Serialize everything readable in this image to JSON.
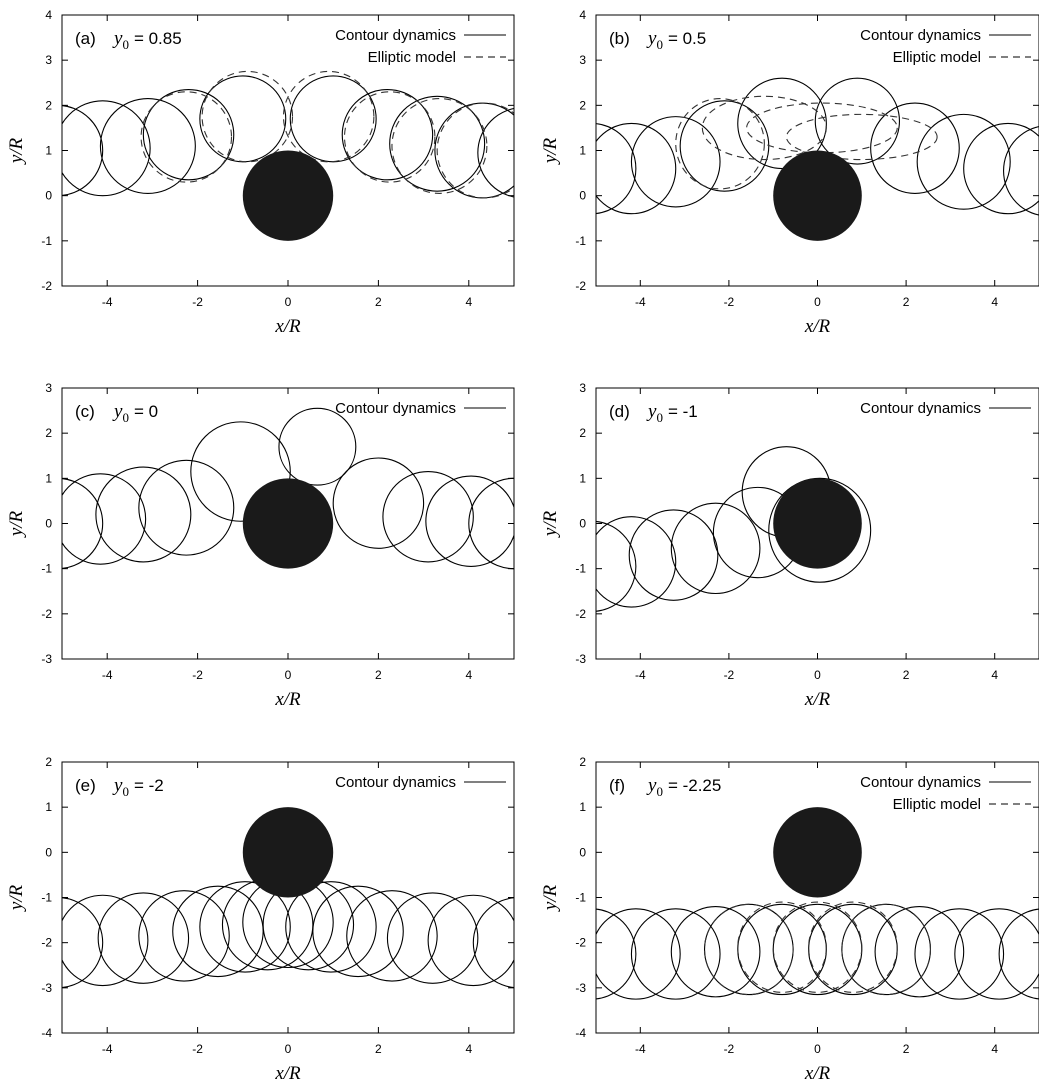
{
  "chart_data": [
    {
      "type": "line",
      "panel_label": "(a)",
      "param": {
        "symbol": "y",
        "subscript": "0",
        "value": "= 0.85"
      },
      "xlabel": "x/R",
      "ylabel": "y/R",
      "xlim": [
        -5,
        5
      ],
      "ylim": [
        -2,
        4
      ],
      "xticks": [
        "-4",
        "-2",
        "0",
        "2",
        "4"
      ],
      "yticks": [
        "-2",
        "-1",
        "0",
        "1",
        "2",
        "3",
        "4"
      ],
      "grid": false,
      "legend_position": "top-right",
      "legend": [
        {
          "label": "Contour dynamics",
          "style": "solid"
        },
        {
          "label": "Elliptic model",
          "style": "dashed"
        }
      ],
      "obstacle": {
        "cx": 0,
        "cy": 0,
        "r": 1
      },
      "series": [
        {
          "name": "Contour dynamics",
          "style": "solid",
          "circles": [
            {
              "cx": -5.1,
              "cy": 1.0,
              "r": 1.0
            },
            {
              "cx": -4.1,
              "cy": 1.05,
              "r": 1.05
            },
            {
              "cx": -3.1,
              "cy": 1.1,
              "r": 1.05
            },
            {
              "cx": -2.2,
              "cy": 1.35,
              "r": 1.0
            },
            {
              "cx": -1.0,
              "cy": 1.7,
              "r": 0.95
            },
            {
              "cx": 1.0,
              "cy": 1.7,
              "r": 0.95
            },
            {
              "cx": 2.2,
              "cy": 1.35,
              "r": 1.0
            },
            {
              "cx": 3.3,
              "cy": 1.15,
              "r": 1.05
            },
            {
              "cx": 4.3,
              "cy": 1.0,
              "r": 1.05
            },
            {
              "cx": 5.2,
              "cy": 0.95,
              "r": 1.0
            }
          ]
        },
        {
          "name": "Elliptic model",
          "style": "dashed",
          "circles": [
            {
              "cx": -2.25,
              "cy": 1.3,
              "r": 1.0
            },
            {
              "cx": -0.9,
              "cy": 1.75,
              "r": 1.0
            },
            {
              "cx": 0.9,
              "cy": 1.75,
              "r": 1.0
            },
            {
              "cx": 2.25,
              "cy": 1.3,
              "r": 1.0
            },
            {
              "cx": 3.35,
              "cy": 1.1,
              "r": 1.05
            },
            {
              "cx": 4.35,
              "cy": 1.0,
              "r": 1.05
            }
          ]
        }
      ]
    },
    {
      "type": "line",
      "panel_label": "(b)",
      "param": {
        "symbol": "y",
        "subscript": "0",
        "value": "= 0.5"
      },
      "xlabel": "x/R",
      "ylabel": "y/R",
      "xlim": [
        -5,
        5
      ],
      "ylim": [
        -2,
        4
      ],
      "xticks": [
        "-4",
        "-2",
        "0",
        "2",
        "4"
      ],
      "yticks": [
        "-2",
        "-1",
        "0",
        "1",
        "2",
        "3",
        "4"
      ],
      "grid": false,
      "legend_position": "top-right",
      "legend": [
        {
          "label": "Contour dynamics",
          "style": "solid"
        },
        {
          "label": "Elliptic model",
          "style": "dashed"
        }
      ],
      "obstacle": {
        "cx": 0,
        "cy": 0,
        "r": 1
      },
      "series": [
        {
          "name": "Contour dynamics",
          "style": "solid",
          "circles": [
            {
              "cx": -5.1,
              "cy": 0.6,
              "r": 1.0
            },
            {
              "cx": -4.2,
              "cy": 0.6,
              "r": 1.0
            },
            {
              "cx": -3.2,
              "cy": 0.75,
              "r": 1.0
            },
            {
              "cx": -2.1,
              "cy": 1.1,
              "r": 1.0
            },
            {
              "cx": -0.8,
              "cy": 1.6,
              "r": 1.0
            },
            {
              "cx": 0.9,
              "cy": 1.65,
              "r": 0.95
            },
            {
              "cx": 2.2,
              "cy": 1.05,
              "r": 1.0
            },
            {
              "cx": 3.3,
              "cy": 0.75,
              "r": 1.05
            },
            {
              "cx": 4.3,
              "cy": 0.6,
              "r": 1.0
            },
            {
              "cx": 5.2,
              "cy": 0.55,
              "r": 1.0
            }
          ]
        },
        {
          "name": "Elliptic model",
          "style": "dashed",
          "ellipses": [
            {
              "cx": -2.2,
              "cy": 1.15,
              "rx": 1.0,
              "ry": 1.0
            },
            {
              "cx": -1.2,
              "cy": 1.5,
              "rx": 1.4,
              "ry": 0.7
            },
            {
              "cx": 0.1,
              "cy": 1.5,
              "rx": 1.7,
              "ry": 0.55
            },
            {
              "cx": 1.0,
              "cy": 1.3,
              "rx": 1.7,
              "ry": 0.5
            }
          ]
        }
      ]
    },
    {
      "type": "line",
      "panel_label": "(c)",
      "param": {
        "symbol": "y",
        "subscript": "0",
        "value": "= 0"
      },
      "xlabel": "x/R",
      "ylabel": "y/R",
      "xlim": [
        -5,
        5
      ],
      "ylim": [
        -3,
        3
      ],
      "xticks": [
        "-4",
        "-2",
        "0",
        "2",
        "4"
      ],
      "yticks": [
        "-3",
        "-2",
        "-1",
        "0",
        "1",
        "2",
        "3"
      ],
      "grid": false,
      "legend_position": "top-right",
      "legend": [
        {
          "label": "Contour dynamics",
          "style": "solid"
        }
      ],
      "obstacle": {
        "cx": 0,
        "cy": 0,
        "r": 1
      },
      "series": [
        {
          "name": "Contour dynamics",
          "style": "solid",
          "circles": [
            {
              "cx": -5.1,
              "cy": 0.0,
              "r": 1.0
            },
            {
              "cx": -4.15,
              "cy": 0.1,
              "r": 1.0
            },
            {
              "cx": -3.2,
              "cy": 0.2,
              "r": 1.05
            },
            {
              "cx": -2.25,
              "cy": 0.35,
              "r": 1.05
            },
            {
              "cx": -1.05,
              "cy": 1.15,
              "r": 1.1
            },
            {
              "cx": 0.65,
              "cy": 1.7,
              "r": 0.85
            },
            {
              "cx": 2.0,
              "cy": 0.45,
              "r": 1.0
            },
            {
              "cx": 3.1,
              "cy": 0.15,
              "r": 1.0
            },
            {
              "cx": 4.05,
              "cy": 0.05,
              "r": 1.0
            },
            {
              "cx": 5.0,
              "cy": 0.0,
              "r": 1.0
            }
          ]
        }
      ]
    },
    {
      "type": "line",
      "panel_label": "(d)",
      "param": {
        "symbol": "y",
        "subscript": "0",
        "value": "= -1"
      },
      "xlabel": "x/R",
      "ylabel": "y/R",
      "xlim": [
        -5,
        5
      ],
      "ylim": [
        -3,
        3
      ],
      "xticks": [
        "-4",
        "-2",
        "0",
        "2",
        "4"
      ],
      "yticks": [
        "-3",
        "-2",
        "-1",
        "0",
        "1",
        "2",
        "3"
      ],
      "grid": false,
      "legend_position": "top-right",
      "legend": [
        {
          "label": "Contour dynamics",
          "style": "solid"
        }
      ],
      "obstacle": {
        "cx": 0,
        "cy": 0,
        "r": 1
      },
      "series": [
        {
          "name": "Contour dynamics",
          "style": "solid",
          "circles": [
            {
              "cx": -5.1,
              "cy": -0.95,
              "r": 1.0
            },
            {
              "cx": -4.2,
              "cy": -0.85,
              "r": 1.0
            },
            {
              "cx": -3.25,
              "cy": -0.7,
              "r": 1.0
            },
            {
              "cx": -2.3,
              "cy": -0.55,
              "r": 1.0
            },
            {
              "cx": -1.35,
              "cy": -0.2,
              "r": 1.0
            },
            {
              "cx": -0.7,
              "cy": 0.7,
              "r": 1.0
            },
            {
              "cx": 0.05,
              "cy": -0.15,
              "r": 1.15
            }
          ]
        }
      ]
    },
    {
      "type": "line",
      "panel_label": "(e)",
      "param": {
        "symbol": "y",
        "subscript": "0",
        "value": "= -2"
      },
      "xlabel": "x/R",
      "ylabel": "y/R",
      "xlim": [
        -5,
        5
      ],
      "ylim": [
        -4,
        2
      ],
      "xticks": [
        "-4",
        "-2",
        "0",
        "2",
        "4"
      ],
      "yticks": [
        "-4",
        "-3",
        "-2",
        "-1",
        "0",
        "1",
        "2"
      ],
      "grid": false,
      "legend_position": "top-right",
      "legend": [
        {
          "label": "Contour dynamics",
          "style": "solid"
        }
      ],
      "obstacle": {
        "cx": 0,
        "cy": 0,
        "r": 1
      },
      "series": [
        {
          "name": "Contour dynamics",
          "style": "solid",
          "circles": [
            {
              "cx": -5.1,
              "cy": -2.0,
              "r": 1.0
            },
            {
              "cx": -4.1,
              "cy": -1.95,
              "r": 1.0
            },
            {
              "cx": -3.2,
              "cy": -1.9,
              "r": 1.0
            },
            {
              "cx": -2.3,
              "cy": -1.85,
              "r": 1.0
            },
            {
              "cx": -1.55,
              "cy": -1.75,
              "r": 1.0
            },
            {
              "cx": -0.95,
              "cy": -1.65,
              "r": 1.0
            },
            {
              "cx": -0.45,
              "cy": -1.6,
              "r": 1.0
            },
            {
              "cx": 0.0,
              "cy": -1.55,
              "r": 1.0
            },
            {
              "cx": 0.45,
              "cy": -1.6,
              "r": 1.0
            },
            {
              "cx": 0.95,
              "cy": -1.65,
              "r": 1.0
            },
            {
              "cx": 1.55,
              "cy": -1.75,
              "r": 1.0
            },
            {
              "cx": 2.3,
              "cy": -1.85,
              "r": 1.0
            },
            {
              "cx": 3.2,
              "cy": -1.9,
              "r": 1.0
            },
            {
              "cx": 4.1,
              "cy": -1.95,
              "r": 1.0
            },
            {
              "cx": 5.1,
              "cy": -2.0,
              "r": 1.0
            }
          ]
        }
      ]
    },
    {
      "type": "line",
      "panel_label": "(f)",
      "param": {
        "symbol": "y",
        "subscript": "0",
        "value": "= -2.25"
      },
      "xlabel": "x/R",
      "ylabel": "y/R",
      "xlim": [
        -5,
        5
      ],
      "ylim": [
        -4,
        2
      ],
      "xticks": [
        "-4",
        "-2",
        "0",
        "2",
        "4"
      ],
      "yticks": [
        "-4",
        "-3",
        "-2",
        "-1",
        "0",
        "1",
        "2"
      ],
      "grid": false,
      "legend_position": "top-right",
      "legend": [
        {
          "label": "Contour dynamics",
          "style": "solid"
        },
        {
          "label": "Elliptic model",
          "style": "dashed"
        }
      ],
      "obstacle": {
        "cx": 0,
        "cy": 0,
        "r": 1
      },
      "series": [
        {
          "name": "Contour dynamics",
          "style": "solid",
          "circles": [
            {
              "cx": -5.1,
              "cy": -2.25,
              "r": 1.0
            },
            {
              "cx": -4.1,
              "cy": -2.25,
              "r": 1.0
            },
            {
              "cx": -3.2,
              "cy": -2.25,
              "r": 1.0
            },
            {
              "cx": -2.3,
              "cy": -2.2,
              "r": 1.0
            },
            {
              "cx": -1.55,
              "cy": -2.15,
              "r": 1.0
            },
            {
              "cx": -0.8,
              "cy": -2.15,
              "r": 1.0
            },
            {
              "cx": 0.0,
              "cy": -2.15,
              "r": 1.0
            },
            {
              "cx": 0.8,
              "cy": -2.15,
              "r": 1.0
            },
            {
              "cx": 1.55,
              "cy": -2.15,
              "r": 1.0
            },
            {
              "cx": 2.3,
              "cy": -2.2,
              "r": 1.0
            },
            {
              "cx": 3.2,
              "cy": -2.25,
              "r": 1.0
            },
            {
              "cx": 4.1,
              "cy": -2.25,
              "r": 1.0
            },
            {
              "cx": 5.1,
              "cy": -2.25,
              "r": 1.0
            }
          ]
        },
        {
          "name": "Elliptic model",
          "style": "dashed",
          "circles": [
            {
              "cx": -1.55,
              "cy": -2.15,
              "r": 1.0
            },
            {
              "cx": -0.8,
              "cy": -2.1,
              "r": 1.0
            },
            {
              "cx": 0.0,
              "cy": -2.1,
              "r": 1.0
            },
            {
              "cx": 0.8,
              "cy": -2.1,
              "r": 1.0
            },
            {
              "cx": 1.55,
              "cy": -2.15,
              "r": 1.0
            }
          ]
        }
      ]
    }
  ]
}
